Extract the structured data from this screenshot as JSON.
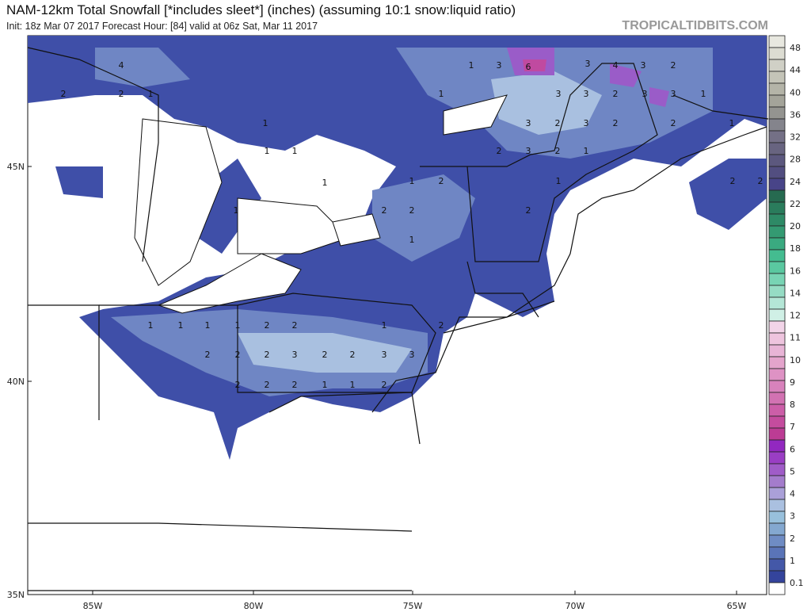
{
  "header": {
    "title": "NAM-12km Total Snowfall [*includes sleet*] (inches) (assuming 10:1 snow:liquid ratio)",
    "subtitle": "Init: 18z Mar 07 2017   Forecast Hour: [84]   valid at 06z Sat, Mar 11 2017",
    "brand": "TROPICALTIDBITS.COM"
  },
  "map": {
    "lat_labels": [
      "45N",
      "40N",
      "35N"
    ],
    "lon_labels": [
      "85W",
      "80W",
      "75W",
      "70W",
      "65W"
    ],
    "snow_labels": [
      4,
      2,
      2,
      1,
      1,
      1,
      1,
      1,
      1,
      1,
      3,
      6,
      3,
      4,
      3,
      2,
      1,
      3,
      3,
      2,
      3,
      3,
      1,
      3,
      2,
      3,
      2,
      2,
      1,
      2,
      3,
      2,
      1,
      1,
      2,
      1,
      2,
      2,
      2,
      1,
      2,
      2,
      1,
      1,
      1,
      1,
      2,
      2,
      1,
      2,
      2,
      2,
      2,
      3,
      2,
      2,
      3,
      3,
      2,
      2,
      2,
      1,
      1,
      2
    ],
    "shading_colors": {
      "light": "#a9c0e0",
      "mid": "#6f86c4",
      "dark": "#3f4fa8",
      "purple": "#9a5cc8",
      "magenta": "#c04aa0"
    }
  },
  "colorbar": {
    "labels": [
      "48",
      "44",
      "40",
      "36",
      "32",
      "28",
      "24",
      "22",
      "20",
      "18",
      "16",
      "14",
      "12",
      "11",
      "10",
      "9",
      "8",
      "7",
      "6",
      "5",
      "4",
      "3",
      "2",
      "1",
      "0.1"
    ],
    "colors": [
      "#e8e8e0",
      "#dcdcd2",
      "#d0d0c6",
      "#c4c4b8",
      "#b4b4a8",
      "#a4a49a",
      "#949490",
      "#84848c",
      "#747086",
      "#686480",
      "#5c587e",
      "#524e80",
      "#484488",
      "#266a50",
      "#2a7c5c",
      "#2e8a66",
      "#349a72",
      "#3aaa80",
      "#44bc90",
      "#5ac8a0",
      "#78d4b4",
      "#96dcc4",
      "#b4e6d6",
      "#d0f0e6",
      "#f2d4e8",
      "#eec4de",
      "#e8b4d6",
      "#e4a4cc",
      "#de92c4",
      "#d882bc",
      "#d272b2",
      "#cc5ea8",
      "#c44c9e",
      "#bc3c94",
      "#9228c0",
      "#9a3ec4",
      "#a05cc8",
      "#a47ccc",
      "#aaa0d8",
      "#aac0e0",
      "#98c0dc",
      "#84a8d0",
      "#6f8cc4",
      "#5a74b8",
      "#4458a8",
      "#34449c",
      "#ffffff"
    ]
  }
}
